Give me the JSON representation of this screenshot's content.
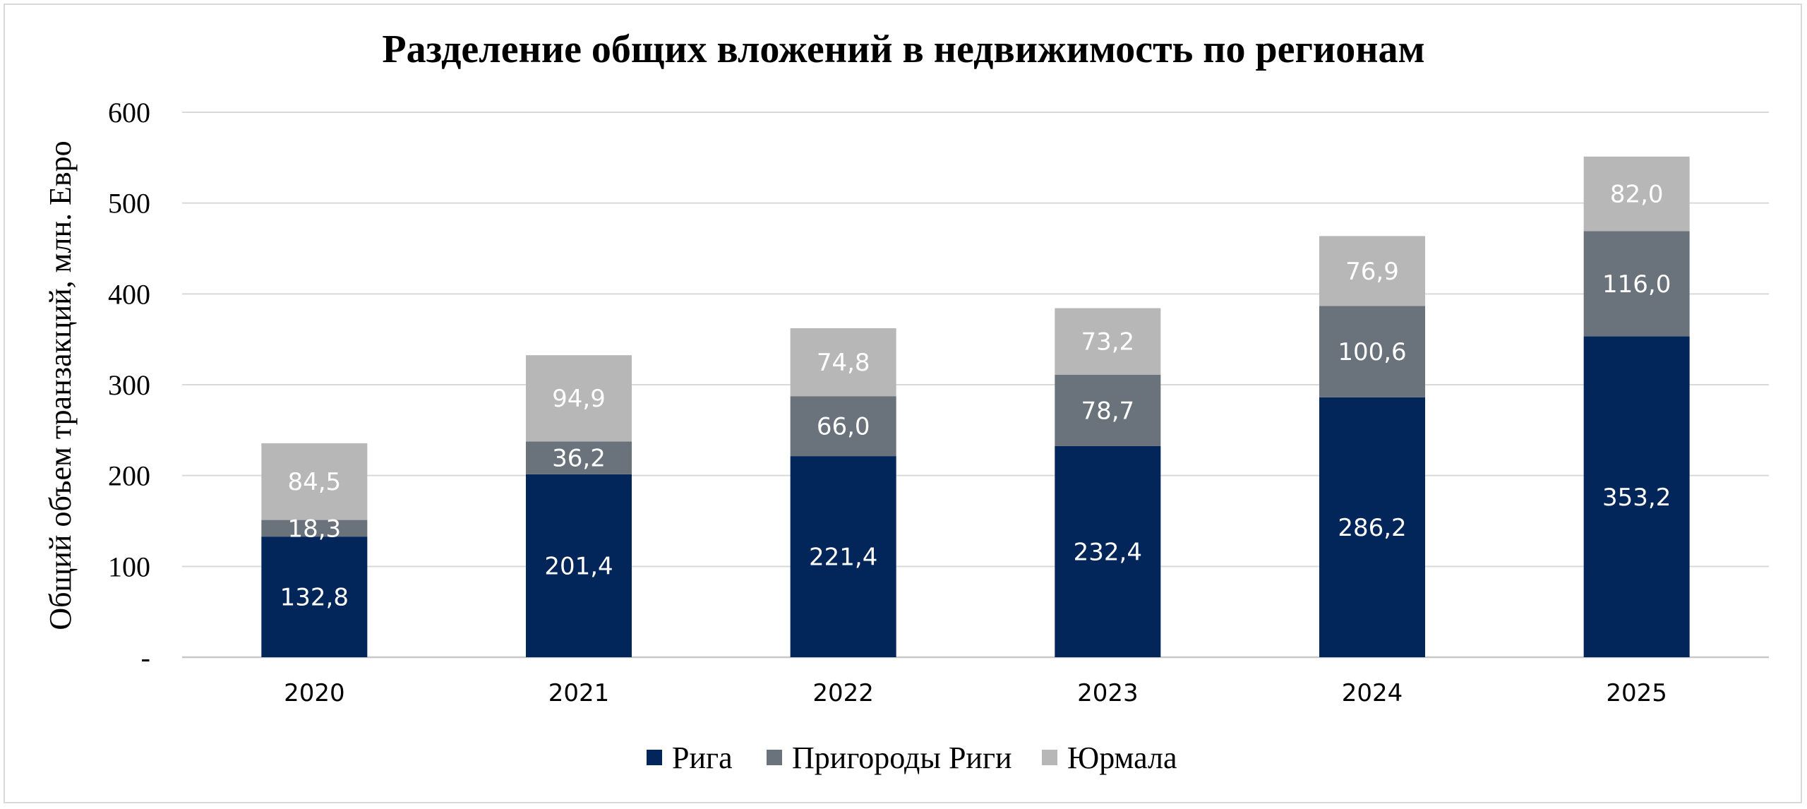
{
  "chart_data": {
    "type": "bar",
    "stacked": true,
    "title": "Разделение общих вложений в недвижимость по регионам",
    "xlabel": "",
    "ylabel": "Общий объем транзакций, млн. Евро",
    "ylim": [
      0,
      600
    ],
    "yticks": [
      0,
      100,
      200,
      300,
      400,
      500,
      600
    ],
    "ytick_labels": [
      "-",
      "100",
      "200",
      "300",
      "400",
      "500",
      "600"
    ],
    "grid": true,
    "legend_position": "bottom",
    "categories": [
      "2020",
      "2021",
      "2022",
      "2023",
      "2024",
      "2025"
    ],
    "series": [
      {
        "name": "Рига",
        "color": "#03265a",
        "values": [
          132.8,
          201.4,
          221.4,
          232.4,
          286.2,
          353.2
        ],
        "labels": [
          "132,8",
          "201,4",
          "221,4",
          "232,4",
          "286,2",
          "353,2"
        ]
      },
      {
        "name": "Пригороды Риги",
        "color": "#6a737b",
        "values": [
          18.3,
          36.2,
          66.0,
          78.7,
          100.6,
          116.0
        ],
        "labels": [
          "18,3",
          "36,2",
          "66,0",
          "78,7",
          "100,6",
          "116,0"
        ]
      },
      {
        "name": "Юрмала",
        "color": "#b7b7b8",
        "values": [
          84.5,
          94.9,
          74.8,
          73.2,
          76.9,
          82.0
        ],
        "labels": [
          "84,5",
          "94,9",
          "74,8",
          "73,2",
          "76,9",
          "82,0"
        ]
      }
    ]
  }
}
